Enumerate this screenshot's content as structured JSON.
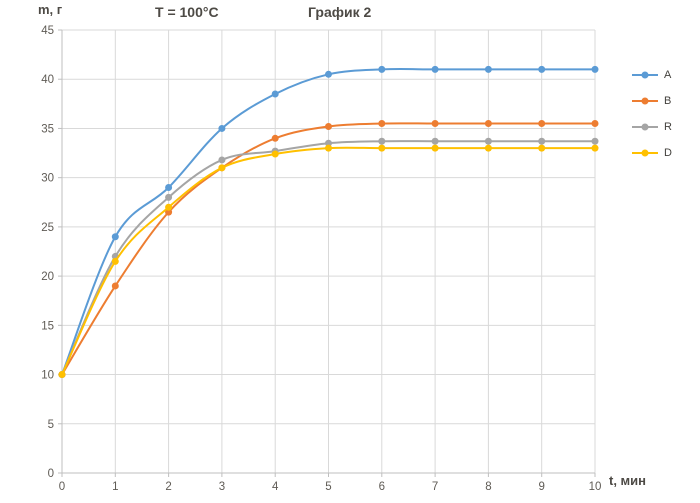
{
  "chart_data": {
    "type": "line",
    "title": "График 2",
    "annotation": "T = 100°C",
    "ylabel": "m, г",
    "xlabel": "t, мин",
    "x": [
      0,
      1,
      2,
      3,
      4,
      5,
      6,
      7,
      8,
      9,
      10
    ],
    "series": [
      {
        "name": "A",
        "color": "#5B9BD5",
        "values": [
          10,
          24,
          29,
          35,
          38.5,
          40.5,
          41,
          41,
          41,
          41,
          41
        ]
      },
      {
        "name": "B",
        "color": "#ED7D31",
        "values": [
          10,
          19,
          26.5,
          31,
          34,
          35.2,
          35.5,
          35.5,
          35.5,
          35.5,
          35.5
        ]
      },
      {
        "name": "R",
        "color": "#A5A5A5",
        "values": [
          10,
          22,
          28,
          31.8,
          32.7,
          33.5,
          33.7,
          33.7,
          33.7,
          33.7,
          33.7
        ]
      },
      {
        "name": "D",
        "color": "#FFC000",
        "values": [
          10,
          21.5,
          27,
          31,
          32.4,
          33,
          33,
          33,
          33,
          33,
          33
        ]
      }
    ],
    "xlim": [
      0,
      10
    ],
    "ylim": [
      0,
      45
    ],
    "x_tick_step": 1,
    "y_tick_step": 5,
    "grid": true,
    "legend_position": "right",
    "style": {
      "gridline_color": "#D9D9D9",
      "axis_color": "#BFBFBF",
      "tick_label_color": "#5f5b55",
      "title_color": "#4d4a45",
      "background": "#FFFFFF"
    }
  }
}
